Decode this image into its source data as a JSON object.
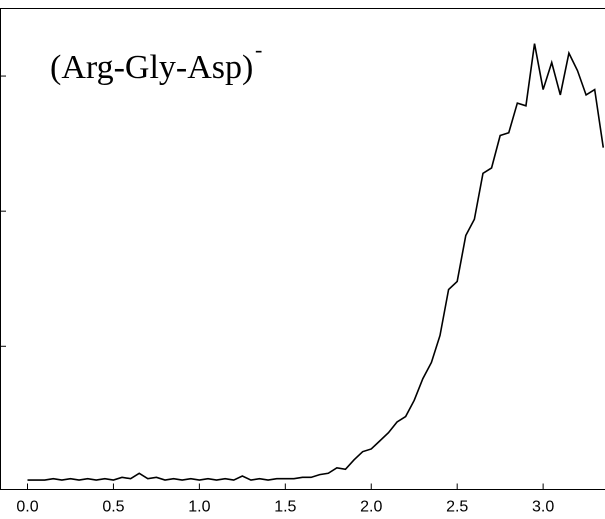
{
  "chart_data": {
    "type": "line",
    "annotation": "(Arg-Gly-Asp)",
    "annotation_superscript": "-",
    "x": [
      0,
      0.05,
      0.1,
      0.15,
      0.2,
      0.25,
      0.3,
      0.35,
      0.4,
      0.45,
      0.5,
      0.55,
      0.6,
      0.65,
      0.7,
      0.75,
      0.8,
      0.85,
      0.9,
      0.95,
      1.0,
      1.05,
      1.1,
      1.15,
      1.2,
      1.25,
      1.3,
      1.35,
      1.4,
      1.45,
      1.5,
      1.55,
      1.6,
      1.65,
      1.7,
      1.75,
      1.8,
      1.85,
      1.9,
      1.95,
      2.0,
      2.05,
      2.1,
      2.15,
      2.2,
      2.25,
      2.3,
      2.35,
      2.4,
      2.45,
      2.5,
      2.55,
      2.6,
      2.65,
      2.7,
      2.75,
      2.8,
      2.85,
      2.9,
      2.95,
      3.0,
      3.05,
      3.1,
      3.15,
      3.2,
      3.25,
      3.3,
      3.35
    ],
    "values": [
      0.01,
      0.01,
      0.01,
      0.02,
      0.01,
      0.02,
      0.01,
      0.02,
      0.01,
      0.02,
      0.01,
      0.03,
      0.02,
      0.06,
      0.02,
      0.03,
      0.01,
      0.02,
      0.01,
      0.02,
      0.01,
      0.02,
      0.01,
      0.02,
      0.01,
      0.04,
      0.01,
      0.02,
      0.01,
      0.02,
      0.02,
      0.02,
      0.03,
      0.03,
      0.05,
      0.06,
      0.1,
      0.09,
      0.16,
      0.22,
      0.24,
      0.3,
      0.36,
      0.44,
      0.48,
      0.6,
      0.76,
      0.88,
      1.08,
      1.42,
      1.48,
      1.82,
      1.94,
      2.28,
      2.32,
      2.56,
      2.58,
      2.8,
      2.78,
      3.24,
      2.9,
      3.1,
      2.86,
      3.17,
      3.04,
      2.86,
      2.9,
      2.47
    ],
    "color": "#000000",
    "xlim": [
      -0.16,
      3.36
    ],
    "xticks": [
      {
        "value": 0,
        "label": "0.0"
      },
      0.5,
      {
        "value": 1,
        "label": "1.0"
      },
      1.5,
      {
        "value": 2,
        "label": "2.0"
      },
      2.5,
      {
        "value": 3,
        "label": "3.0"
      }
    ],
    "ylim": [
      -0.06,
      3.5
    ],
    "yticks": [
      1,
      2,
      3
    ]
  }
}
